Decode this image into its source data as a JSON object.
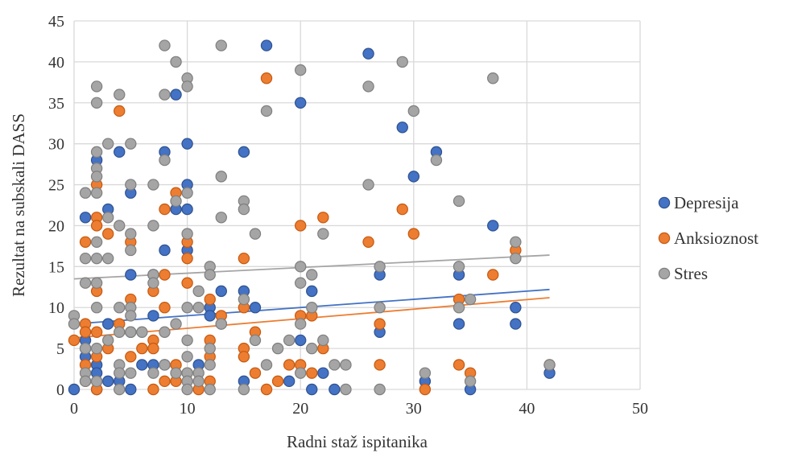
{
  "chart_data": {
    "type": "scatter",
    "title": "",
    "xlabel": "Radni staž ispitanika",
    "ylabel": "Rezultat na subskali DASS",
    "xlim": [
      0,
      50
    ],
    "ylim": [
      0,
      45
    ],
    "xticks": [
      "0",
      "10",
      "20",
      "30",
      "40",
      "50"
    ],
    "yticks": [
      "0",
      "5",
      "10",
      "15",
      "20",
      "25",
      "30",
      "35",
      "40",
      "45"
    ],
    "grid": true,
    "legend_position": "right",
    "series": [
      {
        "name": "Depresija",
        "color": "#4472C4",
        "points": [
          [
            0,
            0
          ],
          [
            1,
            21
          ],
          [
            1,
            6
          ],
          [
            1,
            5
          ],
          [
            1,
            4
          ],
          [
            2,
            28
          ],
          [
            2,
            3
          ],
          [
            2,
            2
          ],
          [
            2,
            1
          ],
          [
            2,
            0
          ],
          [
            3,
            22
          ],
          [
            3,
            8
          ],
          [
            3,
            1
          ],
          [
            4,
            29
          ],
          [
            4,
            1
          ],
          [
            5,
            24
          ],
          [
            5,
            14
          ],
          [
            5,
            7
          ],
          [
            5,
            0
          ],
          [
            6,
            3
          ],
          [
            7,
            14
          ],
          [
            7,
            9
          ],
          [
            7,
            3
          ],
          [
            8,
            29
          ],
          [
            8,
            17
          ],
          [
            8,
            3
          ],
          [
            9,
            36
          ],
          [
            9,
            22
          ],
          [
            10,
            30
          ],
          [
            10,
            25
          ],
          [
            10,
            22
          ],
          [
            10,
            17
          ],
          [
            11,
            3
          ],
          [
            12,
            10
          ],
          [
            12,
            9
          ],
          [
            13,
            12
          ],
          [
            13,
            8
          ],
          [
            15,
            29
          ],
          [
            15,
            12
          ],
          [
            15,
            1
          ],
          [
            16,
            10
          ],
          [
            17,
            42
          ],
          [
            19,
            1
          ],
          [
            20,
            35
          ],
          [
            20,
            6
          ],
          [
            21,
            12
          ],
          [
            21,
            0
          ],
          [
            22,
            2
          ],
          [
            23,
            0
          ],
          [
            26,
            41
          ],
          [
            27,
            14
          ],
          [
            27,
            7
          ],
          [
            29,
            32
          ],
          [
            30,
            26
          ],
          [
            31,
            1
          ],
          [
            32,
            29
          ],
          [
            34,
            14
          ],
          [
            34,
            8
          ],
          [
            35,
            0
          ],
          [
            37,
            20
          ],
          [
            39,
            10
          ],
          [
            39,
            8
          ],
          [
            42,
            2
          ]
        ],
        "trend": [
          [
            0,
            8.0
          ],
          [
            42,
            12.2
          ]
        ]
      },
      {
        "name": "Anksioznost",
        "color": "#ED7D31",
        "points": [
          [
            0,
            6
          ],
          [
            1,
            18
          ],
          [
            1,
            8
          ],
          [
            1,
            7
          ],
          [
            1,
            3
          ],
          [
            1,
            1
          ],
          [
            2,
            25
          ],
          [
            2,
            21
          ],
          [
            2,
            20
          ],
          [
            2,
            12
          ],
          [
            2,
            7
          ],
          [
            2,
            4
          ],
          [
            2,
            0
          ],
          [
            3,
            19
          ],
          [
            3,
            5
          ],
          [
            4,
            34
          ],
          [
            4,
            8
          ],
          [
            5,
            18
          ],
          [
            5,
            11
          ],
          [
            5,
            4
          ],
          [
            6,
            5
          ],
          [
            7,
            12
          ],
          [
            7,
            6
          ],
          [
            7,
            5
          ],
          [
            7,
            0
          ],
          [
            8,
            22
          ],
          [
            8,
            14
          ],
          [
            8,
            10
          ],
          [
            8,
            1
          ],
          [
            9,
            24
          ],
          [
            9,
            3
          ],
          [
            9,
            1
          ],
          [
            10,
            18
          ],
          [
            10,
            16
          ],
          [
            10,
            13
          ],
          [
            10,
            2
          ],
          [
            11,
            0
          ],
          [
            12,
            11
          ],
          [
            12,
            6
          ],
          [
            12,
            4
          ],
          [
            12,
            1
          ],
          [
            13,
            9
          ],
          [
            15,
            16
          ],
          [
            15,
            10
          ],
          [
            15,
            5
          ],
          [
            15,
            4
          ],
          [
            16,
            7
          ],
          [
            16,
            2
          ],
          [
            17,
            38
          ],
          [
            17,
            0
          ],
          [
            18,
            1
          ],
          [
            19,
            3
          ],
          [
            20,
            20
          ],
          [
            20,
            9
          ],
          [
            20,
            3
          ],
          [
            21,
            9
          ],
          [
            21,
            2
          ],
          [
            22,
            21
          ],
          [
            22,
            5
          ],
          [
            26,
            18
          ],
          [
            27,
            8
          ],
          [
            27,
            3
          ],
          [
            29,
            22
          ],
          [
            30,
            19
          ],
          [
            31,
            0
          ],
          [
            34,
            11
          ],
          [
            34,
            3
          ],
          [
            35,
            2
          ],
          [
            37,
            14
          ],
          [
            39,
            17
          ],
          [
            42,
            3
          ]
        ],
        "trend": [
          [
            0,
            6.3
          ],
          [
            42,
            11.2
          ]
        ]
      },
      {
        "name": "Stres",
        "color": "#A5A5A5",
        "points": [
          [
            0,
            9
          ],
          [
            0,
            8
          ],
          [
            1,
            24
          ],
          [
            1,
            16
          ],
          [
            1,
            13
          ],
          [
            1,
            5
          ],
          [
            1,
            2
          ],
          [
            1,
            1
          ],
          [
            2,
            37
          ],
          [
            2,
            35
          ],
          [
            2,
            29
          ],
          [
            2,
            27
          ],
          [
            2,
            26
          ],
          [
            2,
            24
          ],
          [
            2,
            18
          ],
          [
            2,
            16
          ],
          [
            2,
            13
          ],
          [
            2,
            10
          ],
          [
            2,
            5
          ],
          [
            2,
            1
          ],
          [
            3,
            30
          ],
          [
            3,
            21
          ],
          [
            3,
            16
          ],
          [
            3,
            6
          ],
          [
            4,
            36
          ],
          [
            4,
            20
          ],
          [
            4,
            10
          ],
          [
            4,
            7
          ],
          [
            4,
            3
          ],
          [
            4,
            2
          ],
          [
            4,
            0
          ],
          [
            5,
            30
          ],
          [
            5,
            25
          ],
          [
            5,
            19
          ],
          [
            5,
            17
          ],
          [
            5,
            10
          ],
          [
            5,
            9
          ],
          [
            5,
            7
          ],
          [
            5,
            2
          ],
          [
            6,
            7
          ],
          [
            7,
            25
          ],
          [
            7,
            20
          ],
          [
            7,
            14
          ],
          [
            7,
            13
          ],
          [
            7,
            2
          ],
          [
            8,
            42
          ],
          [
            8,
            36
          ],
          [
            8,
            28
          ],
          [
            8,
            7
          ],
          [
            8,
            3
          ],
          [
            9,
            40
          ],
          [
            9,
            23
          ],
          [
            9,
            8
          ],
          [
            9,
            2
          ],
          [
            10,
            38
          ],
          [
            10,
            37
          ],
          [
            10,
            24
          ],
          [
            10,
            19
          ],
          [
            10,
            10
          ],
          [
            10,
            6
          ],
          [
            10,
            4
          ],
          [
            10,
            2
          ],
          [
            10,
            1
          ],
          [
            10,
            0
          ],
          [
            11,
            12
          ],
          [
            11,
            10
          ],
          [
            11,
            2
          ],
          [
            11,
            1
          ],
          [
            12,
            15
          ],
          [
            12,
            14
          ],
          [
            12,
            5
          ],
          [
            12,
            3
          ],
          [
            12,
            0
          ],
          [
            13,
            42
          ],
          [
            13,
            26
          ],
          [
            13,
            21
          ],
          [
            13,
            8
          ],
          [
            15,
            23
          ],
          [
            15,
            22
          ],
          [
            15,
            11
          ],
          [
            15,
            0
          ],
          [
            16,
            19
          ],
          [
            16,
            6
          ],
          [
            17,
            34
          ],
          [
            17,
            3
          ],
          [
            18,
            5
          ],
          [
            19,
            6
          ],
          [
            20,
            39
          ],
          [
            20,
            15
          ],
          [
            20,
            13
          ],
          [
            20,
            8
          ],
          [
            20,
            2
          ],
          [
            21,
            14
          ],
          [
            21,
            10
          ],
          [
            21,
            5
          ],
          [
            22,
            19
          ],
          [
            22,
            6
          ],
          [
            23,
            3
          ],
          [
            24,
            3
          ],
          [
            24,
            0
          ],
          [
            26,
            37
          ],
          [
            26,
            25
          ],
          [
            27,
            15
          ],
          [
            27,
            10
          ],
          [
            27,
            0
          ],
          [
            29,
            40
          ],
          [
            30,
            34
          ],
          [
            31,
            2
          ],
          [
            32,
            28
          ],
          [
            34,
            23
          ],
          [
            34,
            15
          ],
          [
            34,
            10
          ],
          [
            35,
            11
          ],
          [
            35,
            1
          ],
          [
            37,
            38
          ],
          [
            39,
            18
          ],
          [
            39,
            16
          ],
          [
            42,
            3
          ]
        ],
        "trend": [
          [
            0,
            13.5
          ],
          [
            42,
            16.4
          ]
        ]
      }
    ]
  }
}
